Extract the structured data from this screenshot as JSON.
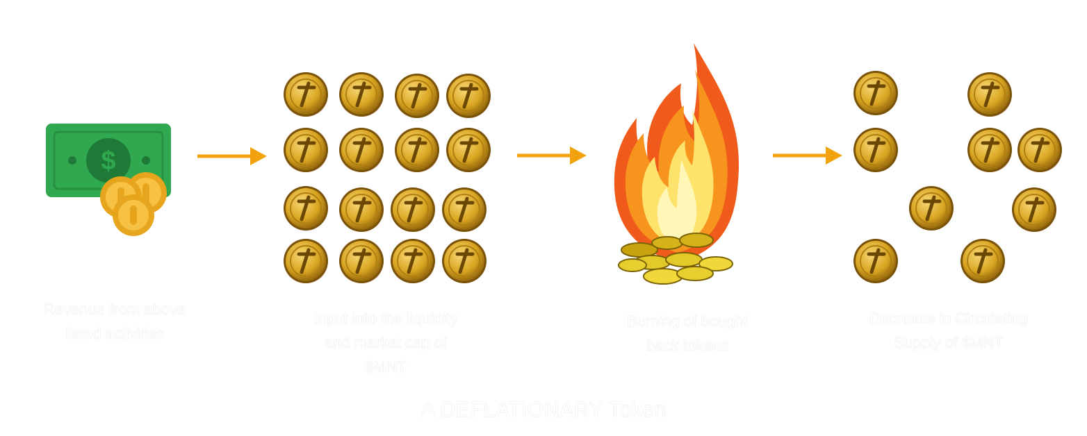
{
  "steps": [
    {
      "caption": "Revenue from above\nlisted activities",
      "icon": "money-icon"
    },
    {
      "caption": "Input into the liquidity\nand market cap of\n$MNT",
      "icon": "coin-grid-icon"
    },
    {
      "caption": "Burning of bought\nback tokens",
      "icon": "fire-icon"
    },
    {
      "caption": "Decrease in Circulating\nSupply of $MNT",
      "icon": "sparse-coins-icon"
    }
  ],
  "footer": "A DEFLATIONARY Token",
  "colors": {
    "arrow": "#f2a20c",
    "bill": "#2fa84f",
    "bill_dark": "#1f7a38",
    "coin": "#d9a521",
    "coin_light": "#f7d774",
    "flame_outer": "#f05a1a",
    "flame_mid": "#f7941d",
    "flame_inner": "#fde36b"
  }
}
